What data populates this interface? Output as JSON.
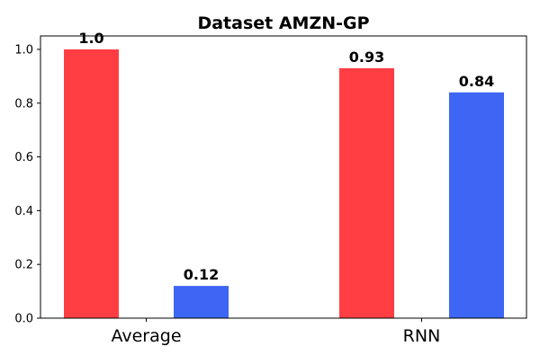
{
  "chart_data": {
    "type": "bar",
    "title": "Dataset AMZN-GP",
    "xlabel": "",
    "ylabel": "",
    "categories": [
      "Average",
      "RNN"
    ],
    "series": [
      {
        "color": "#ff3e43",
        "values": [
          1.0,
          0.93
        ]
      },
      {
        "color": "#3d66f5",
        "values": [
          0.12,
          0.84
        ]
      }
    ],
    "data_labels": [
      [
        "1.0",
        "0.93"
      ],
      [
        "0.12",
        "0.84"
      ]
    ],
    "ylim": [
      0,
      1.05
    ],
    "yticks": [
      "0.0",
      "0.2",
      "0.4",
      "0.6",
      "0.8",
      "1.0"
    ],
    "grid": false,
    "legend": "none"
  }
}
